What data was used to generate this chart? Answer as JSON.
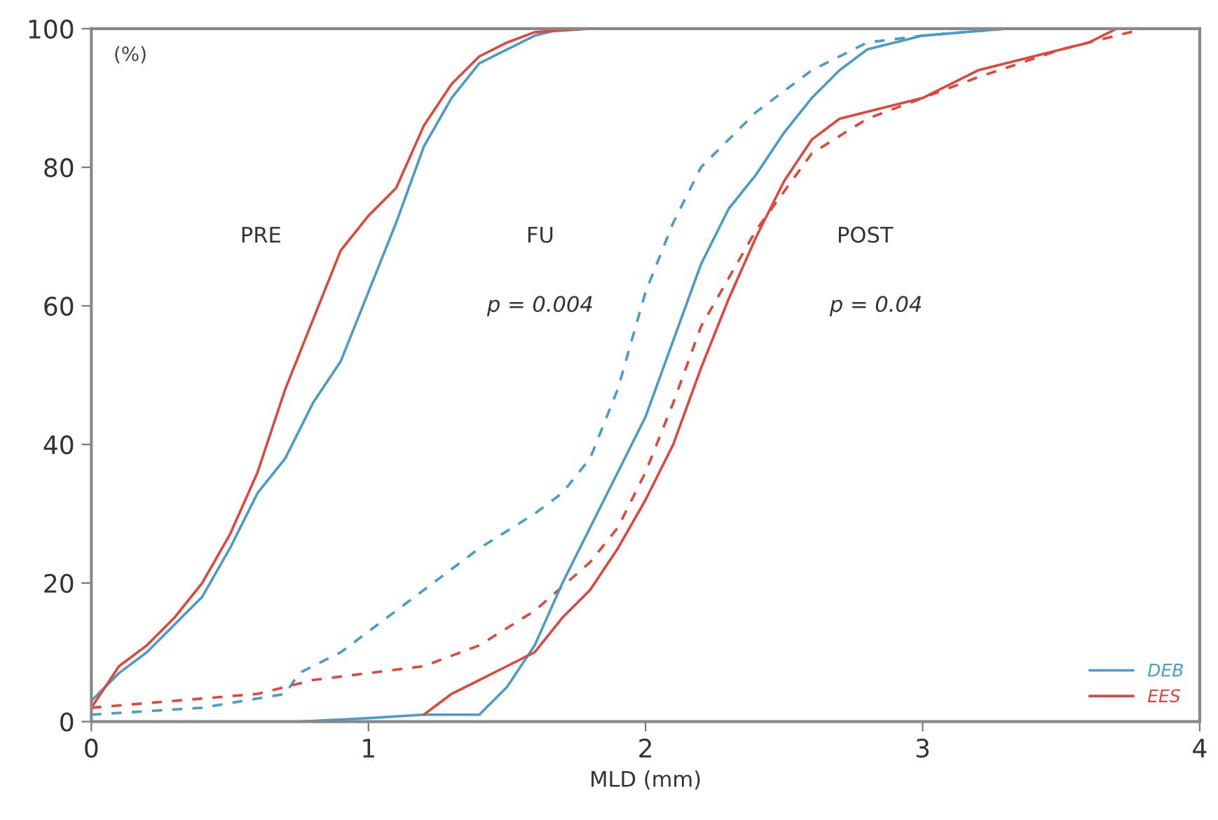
{
  "chart_data": {
    "type": "line",
    "xlabel": "MLD (mm)",
    "ylabel": "(%)",
    "xlim": [
      0,
      4
    ],
    "ylim": [
      0,
      100
    ],
    "xticks": [
      0,
      1,
      2,
      3,
      4
    ],
    "yticks": [
      0,
      20,
      40,
      60,
      80,
      100
    ],
    "grid": false,
    "legend": "bottom right",
    "marker": "none",
    "series": [
      {
        "name": "DEB",
        "color": "#4a9cc8",
        "line_style": "solid",
        "x": [
          0,
          0.1,
          0.2,
          0.3,
          0.4,
          0.5,
          0.6,
          0.7,
          0.8,
          0.9,
          1.0,
          1.1,
          1.2,
          1.3,
          1.4,
          1.5,
          1.6,
          1.7
        ],
        "values": [
          3,
          7,
          10,
          14,
          18,
          25,
          33,
          38,
          46,
          52,
          62,
          72,
          83,
          90,
          95,
          97,
          99,
          100
        ]
      },
      {
        "name": "EES",
        "color": "#e0463c",
        "line_style": "solid",
        "x": [
          0,
          0.05,
          0.1,
          0.2,
          0.3,
          0.4,
          0.5,
          0.6,
          0.7,
          0.8,
          0.9,
          1.0,
          1.1,
          1.2,
          1.3,
          1.4,
          1.5,
          1.6,
          1.8
        ],
        "values": [
          2,
          5,
          8,
          11,
          15,
          20,
          27,
          36,
          48,
          58,
          68,
          73,
          77,
          86,
          92,
          96,
          98,
          99.5,
          100
        ]
      },
      {
        "color": "#4a9cc8",
        "line_style": "dashed",
        "x": [
          0,
          0.4,
          0.7,
          0.75,
          0.9,
          1.0,
          1.2,
          1.4,
          1.6,
          1.7,
          1.8,
          1.9,
          2.0,
          2.1,
          2.2,
          2.4,
          2.6,
          2.8,
          3.0,
          3.3
        ],
        "values": [
          1,
          2,
          4,
          7,
          10,
          13,
          19,
          25,
          30,
          33,
          38,
          48,
          62,
          72,
          80,
          88,
          94,
          98,
          99,
          100
        ]
      },
      {
        "color": "#e0463c",
        "line_style": "dashed",
        "x": [
          0,
          0.3,
          0.6,
          0.8,
          1.0,
          1.2,
          1.4,
          1.6,
          1.8,
          1.9,
          2.0,
          2.1,
          2.2,
          2.4,
          2.6,
          2.8,
          3.0,
          3.2,
          3.5,
          3.8
        ],
        "values": [
          2,
          3,
          4,
          6,
          7,
          8,
          11,
          16,
          23,
          28,
          36,
          46,
          57,
          71,
          82,
          87,
          90,
          93,
          97,
          100
        ]
      },
      {
        "color": "#4a9cc8",
        "line_style": "solid",
        "x": [
          0.75,
          1.0,
          1.2,
          1.4,
          1.5,
          1.6,
          1.7,
          1.8,
          1.9,
          2.0,
          2.1,
          2.2,
          2.3,
          2.4,
          2.5,
          2.6,
          2.7,
          2.8,
          3.0,
          3.3,
          3.7
        ],
        "values": [
          0,
          0.5,
          1,
          1,
          5,
          11,
          20,
          28,
          36,
          44,
          55,
          66,
          74,
          79,
          85,
          90,
          94,
          97,
          99,
          100,
          100
        ]
      },
      {
        "color": "#e0463c",
        "line_style": "solid",
        "x": [
          1.2,
          1.3,
          1.4,
          1.5,
          1.6,
          1.7,
          1.8,
          1.9,
          2.0,
          2.1,
          2.2,
          2.3,
          2.4,
          2.5,
          2.6,
          2.7,
          2.8,
          3.0,
          3.2,
          3.4,
          3.6,
          3.7
        ],
        "values": [
          1,
          4,
          6,
          8,
          10,
          15,
          19,
          25,
          32,
          40,
          51,
          61,
          70,
          78,
          84,
          87,
          88,
          90,
          94,
          96,
          98,
          100
        ]
      }
    ],
    "annotations": [
      "PRE",
      "FU",
      "p = 0.004",
      "POST",
      "p = 0.04"
    ]
  }
}
